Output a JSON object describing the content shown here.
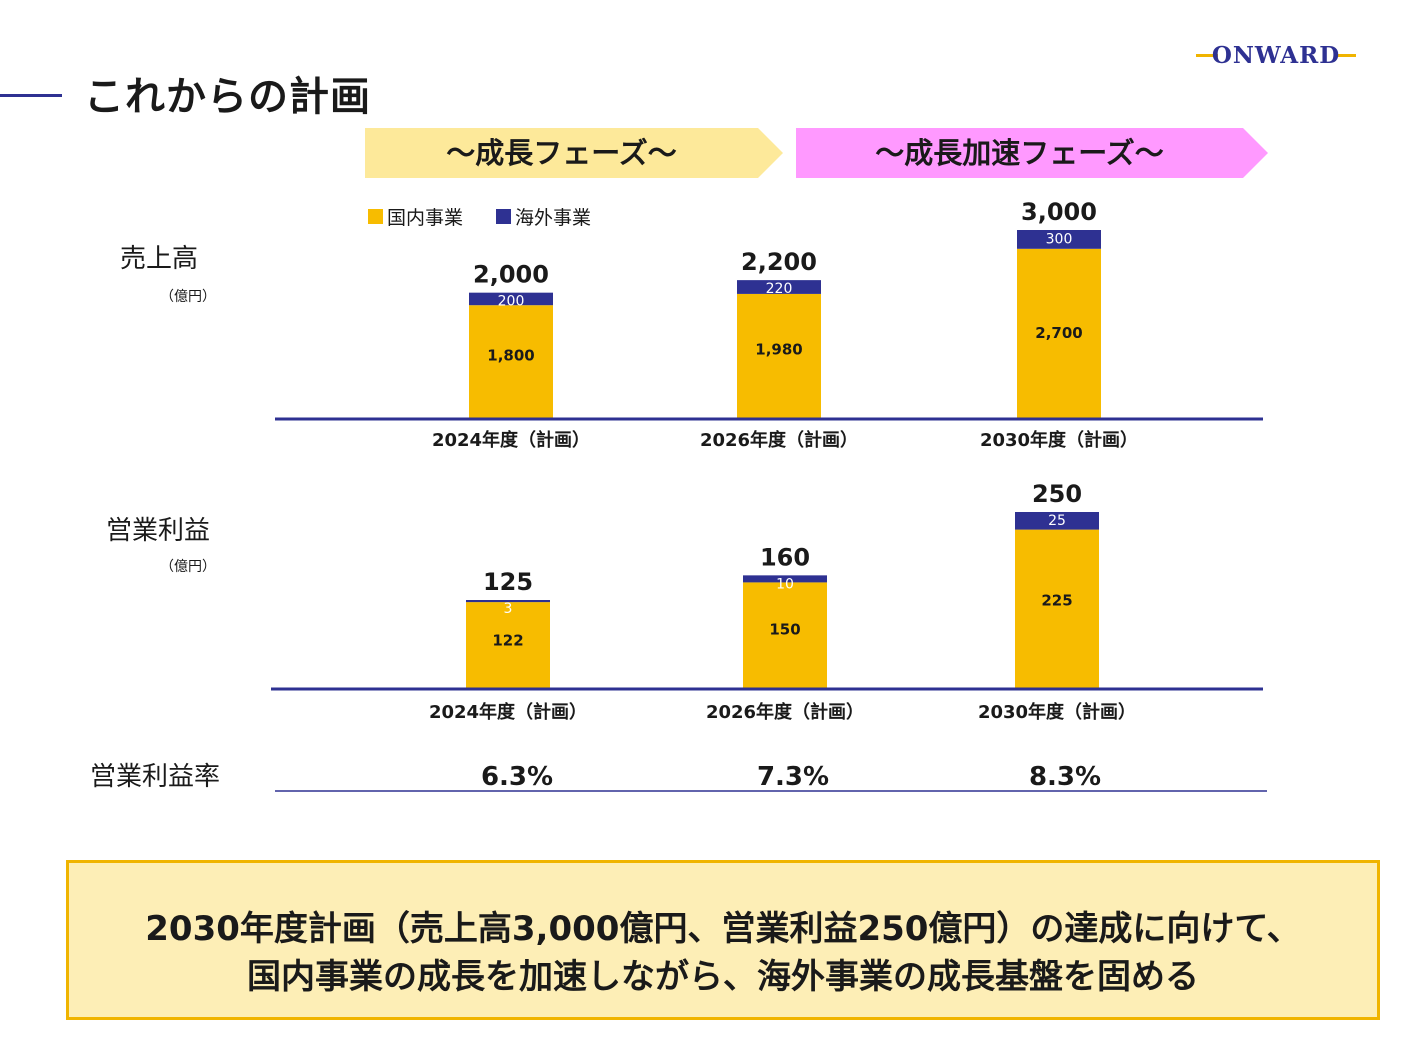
{
  "page": {
    "title": "これからの計画",
    "logo": "ONWARD"
  },
  "phases": [
    {
      "label": "～成長フェーズ～",
      "color": "#fde99a"
    },
    {
      "label": "～成長加速フェーズ～",
      "color": "#ff99ff"
    }
  ],
  "rows": {
    "sales": {
      "label": "売上高",
      "unit": "（億円）"
    },
    "profit": {
      "label": "営業利益",
      "unit": "（億円）"
    },
    "margin": {
      "label": "営業利益率"
    }
  },
  "legend": {
    "domestic": "国内事業",
    "overseas": "海外事業"
  },
  "colors": {
    "domestic": "#f7bc00",
    "overseas": "#2e3192",
    "axis": "#2e3192",
    "accent": "#f0b400",
    "box_bg": "#fdeeb6"
  },
  "chart_data": [
    {
      "type": "bar",
      "stacked": true,
      "categories": [
        "2024年度（計画）",
        "2026年度（計画）",
        "2030年度（計画）"
      ],
      "series": [
        {
          "name": "国内事業",
          "values": [
            1800,
            1980,
            2700
          ],
          "labels": [
            "1,800",
            "1,980",
            "2,700"
          ]
        },
        {
          "name": "海外事業",
          "values": [
            200,
            220,
            300
          ],
          "labels": [
            "200",
            "220",
            "300"
          ]
        }
      ],
      "totals": [
        "2,000",
        "2,200",
        "3,000"
      ],
      "ylim": [
        0,
        3000
      ]
    },
    {
      "type": "bar",
      "stacked": true,
      "categories": [
        "2024年度（計画）",
        "2026年度（計画）",
        "2030年度（計画）"
      ],
      "series": [
        {
          "name": "国内事業",
          "values": [
            122,
            150,
            225
          ],
          "labels": [
            "122",
            "150",
            "225"
          ]
        },
        {
          "name": "海外事業",
          "values": [
            3,
            10,
            25
          ],
          "labels": [
            "3",
            "10",
            "25"
          ]
        }
      ],
      "totals": [
        "125",
        "160",
        "250"
      ],
      "ylim": [
        0,
        250
      ]
    },
    {
      "type": "table",
      "categories": [
        "2024年度（計画）",
        "2026年度（計画）",
        "2030年度（計画）"
      ],
      "values": [
        6.3,
        7.3,
        8.3
      ],
      "labels": [
        "6.3%",
        "7.3%",
        "8.3%"
      ]
    }
  ],
  "message": {
    "line1": "2030年度計画（売上高3,000億円、営業利益250億円）の達成に向けて、",
    "line2": "国内事業の成長を加速しながら、海外事業の成長基盤を固める"
  }
}
